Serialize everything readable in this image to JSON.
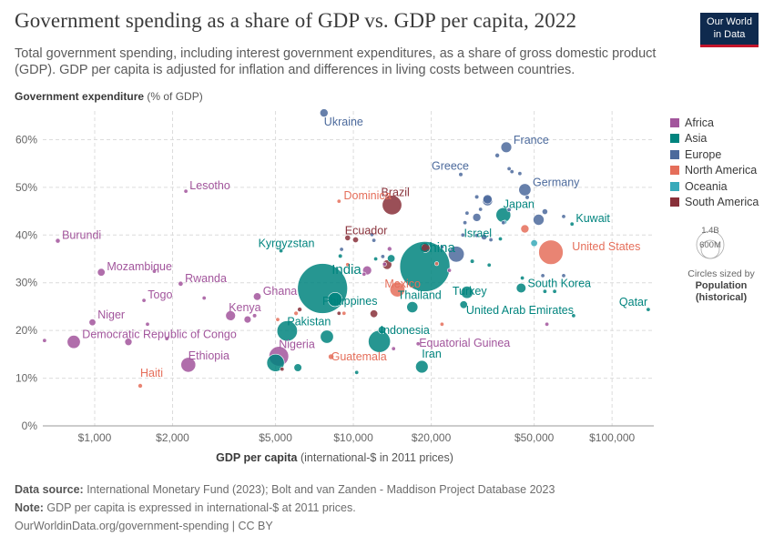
{
  "header": {
    "title": "Government spending as a share of GDP vs. GDP per capita, 2022",
    "subtitle": "Total government spending, including interest government expenditures, as a share of gross domestic product (GDP). GDP per capita is adjusted for inflation and differences in living costs between countries.",
    "logo_line1": "Our World",
    "logo_line2": "in Data"
  },
  "axis_labels": {
    "y_bold": "Government expenditure",
    "y_rest": " (% of GDP)",
    "x_bold": "GDP per capita",
    "x_rest": " (international-$ in 2011 prices)"
  },
  "size_legend": {
    "small": "1.4B",
    "big": "600M",
    "caption": "Circles sized by",
    "measure": "Population",
    "measure_note": "(historical)"
  },
  "footer": {
    "source_label": "Data source:",
    "source_text": " International Monetary Fund (2023); Bolt and van Zanden - Maddison Project Database 2023",
    "note_label": "Note:",
    "note_text": " GDP per capita is expressed in international-$ at 2011 prices.",
    "credit": "OurWorldinData.org/government-spending | CC BY"
  },
  "colors": {
    "Africa": "#a2559c",
    "Asia": "#00847e",
    "Europe": "#4c6a9c",
    "North America": "#e56e5a",
    "Oceania": "#38aaba",
    "South America": "#883039"
  },
  "chart_data": {
    "type": "scatter",
    "title": "Government spending as a share of GDP vs. GDP per capita, 2022",
    "xlabel": "GDP per capita (international-$ in 2011 prices)",
    "ylabel": "Government expenditure (% of GDP)",
    "x_scale": "log",
    "xlim": [
      630,
      145000
    ],
    "ylim": [
      0,
      66
    ],
    "x_ticks": [
      1000,
      2000,
      5000,
      10000,
      20000,
      50000,
      100000
    ],
    "x_tick_labels": [
      "$1,000",
      "$2,000",
      "$5,000",
      "$10,000",
      "$20,000",
      "$50,000",
      "$100,000"
    ],
    "y_ticks": [
      0,
      10,
      20,
      30,
      40,
      50,
      60
    ],
    "y_tick_labels": [
      "0%",
      "10%",
      "20%",
      "30%",
      "40%",
      "50%",
      "60%"
    ],
    "grid": true,
    "legend_position": "right",
    "series": [
      {
        "name": "Africa",
        "points": [
          {
            "label": "Lesotho",
            "x": 2250,
            "y": 49.2,
            "pop": 2.3
          },
          {
            "label": "Burundi",
            "x": 720,
            "y": 38.8,
            "pop": 12.9
          },
          {
            "label": "Mozambique",
            "x": 1060,
            "y": 32.2,
            "pop": 32.9
          },
          {
            "label": "Rwanda",
            "x": 2150,
            "y": 29.8,
            "pop": 13.8
          },
          {
            "label": "Togo",
            "x": 1550,
            "y": 26.3,
            "pop": 8.8
          },
          {
            "label": "Ghana",
            "x": 4250,
            "y": 27.1,
            "pop": 33.5
          },
          {
            "label": "Kenya",
            "x": 3350,
            "y": 23.1,
            "pop": 54
          },
          {
            "label": "Niger",
            "x": 980,
            "y": 21.7,
            "pop": 26.2
          },
          {
            "label": "Democratic Republic of Congo",
            "x": 830,
            "y": 17.6,
            "pop": 99
          },
          {
            "label": "Ethiopia",
            "x": 2300,
            "y": 12.8,
            "pop": 123
          },
          {
            "label": "Nigeria",
            "x": 5150,
            "y": 14.6,
            "pop": 218
          },
          {
            "label": "Equatorial Guinea",
            "x": 17800,
            "y": 17.2,
            "pop": 1.7
          },
          {
            "label": "",
            "x": 640,
            "y": 17.9,
            "pop": 5
          },
          {
            "label": "",
            "x": 1350,
            "y": 17.6,
            "pop": 30
          },
          {
            "label": "",
            "x": 1600,
            "y": 21.3,
            "pop": 8
          },
          {
            "label": "",
            "x": 1700,
            "y": 32.4,
            "pop": 8
          },
          {
            "label": "",
            "x": 2650,
            "y": 26.8,
            "pop": 6
          },
          {
            "label": "",
            "x": 3900,
            "y": 22.3,
            "pop": 29
          },
          {
            "label": "",
            "x": 4150,
            "y": 23.1,
            "pop": 10
          },
          {
            "label": "",
            "x": 1900,
            "y": 18.3,
            "pop": 4
          },
          {
            "label": "",
            "x": 11300,
            "y": 32.6,
            "pop": 46
          },
          {
            "label": "",
            "x": 11000,
            "y": 31.8,
            "pop": 6
          },
          {
            "label": "",
            "x": 13200,
            "y": 33.9,
            "pop": 1.3
          },
          {
            "label": "",
            "x": 13800,
            "y": 37.1,
            "pop": 12
          },
          {
            "label": "",
            "x": 14300,
            "y": 16.2,
            "pop": 2.5
          },
          {
            "label": "",
            "x": 23500,
            "y": 32.6,
            "pop": 1.3
          },
          {
            "label": "",
            "x": 56000,
            "y": 21.3,
            "pop": 0.1
          }
        ]
      },
      {
        "name": "Asia",
        "points": [
          {
            "label": "China",
            "x": 18900,
            "y": 33.4,
            "pop": 1425
          },
          {
            "label": "India",
            "x": 7600,
            "y": 28.8,
            "pop": 1417
          },
          {
            "label": "Pakistan",
            "x": 5550,
            "y": 19.9,
            "pop": 236
          },
          {
            "label": "Indonesia",
            "x": 12600,
            "y": 17.7,
            "pop": 275
          },
          {
            "label": "Philippines",
            "x": 8500,
            "y": 26.5,
            "pop": 116
          },
          {
            "label": "Thailand",
            "x": 16900,
            "y": 24.9,
            "pop": 71
          },
          {
            "label": "Iran",
            "x": 18400,
            "y": 12.4,
            "pop": 89
          },
          {
            "label": "Japan",
            "x": 38000,
            "y": 44.2,
            "pop": 124
          },
          {
            "label": "South Korea",
            "x": 44500,
            "y": 28.9,
            "pop": 52
          },
          {
            "label": "Turkey",
            "x": 27500,
            "y": 28.0,
            "pop": 85
          },
          {
            "label": "Israel",
            "x": 37000,
            "y": 39.2,
            "pop": 9
          },
          {
            "label": "Kyrgyzstan",
            "x": 5250,
            "y": 36.7,
            "pop": 6.8
          },
          {
            "label": "United Arab Emirates",
            "x": 71000,
            "y": 23.1,
            "pop": 9.4
          },
          {
            "label": "Kuwait",
            "x": 70000,
            "y": 42.3,
            "pop": 4.3
          },
          {
            "label": "Qatar",
            "x": 138000,
            "y": 24.4,
            "pop": 2.7
          },
          {
            "label": "",
            "x": 5000,
            "y": 13.2,
            "pop": 173
          },
          {
            "label": "",
            "x": 7900,
            "y": 18.7,
            "pop": 99
          },
          {
            "label": "",
            "x": 6100,
            "y": 12.2,
            "pop": 35
          },
          {
            "label": "",
            "x": 10300,
            "y": 11.2,
            "pop": 5
          },
          {
            "label": "",
            "x": 12900,
            "y": 20.1,
            "pop": 34
          },
          {
            "label": "",
            "x": 26700,
            "y": 25.4,
            "pop": 33
          },
          {
            "label": "",
            "x": 28800,
            "y": 34.5,
            "pop": 10
          },
          {
            "label": "",
            "x": 33500,
            "y": 33.7,
            "pop": 6
          },
          {
            "label": "",
            "x": 55000,
            "y": 28.2,
            "pop": 5
          },
          {
            "label": "",
            "x": 45000,
            "y": 31.0,
            "pop": 1.5
          },
          {
            "label": "",
            "x": 60000,
            "y": 28.2,
            "pop": 5.6
          },
          {
            "label": "",
            "x": 14000,
            "y": 35.1,
            "pop": 34
          },
          {
            "label": "",
            "x": 12200,
            "y": 35.0,
            "pop": 5
          },
          {
            "label": "",
            "x": 8900,
            "y": 35.6,
            "pop": 10
          }
        ]
      },
      {
        "name": "Europe",
        "points": [
          {
            "label": "Ukraine",
            "x": 7700,
            "y": 65.6,
            "pop": 39
          },
          {
            "label": "France",
            "x": 39000,
            "y": 58.4,
            "pop": 66
          },
          {
            "label": "Greece",
            "x": 26000,
            "y": 52.7,
            "pop": 10
          },
          {
            "label": "Germany",
            "x": 46000,
            "y": 49.5,
            "pop": 84
          },
          {
            "label": "",
            "x": 36000,
            "y": 56.7,
            "pop": 11.7
          },
          {
            "label": "",
            "x": 41000,
            "y": 53.3,
            "pop": 9
          },
          {
            "label": "",
            "x": 44000,
            "y": 52.9,
            "pop": 5.9
          },
          {
            "label": "",
            "x": 40000,
            "y": 53.9,
            "pop": 5.5
          },
          {
            "label": "",
            "x": 33000,
            "y": 47.2,
            "pop": 59
          },
          {
            "label": "",
            "x": 33000,
            "y": 47.5,
            "pop": 47
          },
          {
            "label": "",
            "x": 47000,
            "y": 47.9,
            "pop": 10.4
          },
          {
            "label": "",
            "x": 30000,
            "y": 43.7,
            "pop": 38
          },
          {
            "label": "",
            "x": 30000,
            "y": 48.0,
            "pop": 10.3
          },
          {
            "label": "",
            "x": 27000,
            "y": 42.6,
            "pop": 2.1
          },
          {
            "label": "",
            "x": 27500,
            "y": 44.6,
            "pop": 3.9
          },
          {
            "label": "",
            "x": 40000,
            "y": 45.3,
            "pop": 5.5
          },
          {
            "label": "",
            "x": 55000,
            "y": 44.9,
            "pop": 17.6
          },
          {
            "label": "",
            "x": 65000,
            "y": 43.9,
            "pop": 8.7
          },
          {
            "label": "",
            "x": 52000,
            "y": 43.2,
            "pop": 67
          },
          {
            "label": "",
            "x": 30000,
            "y": 39.9,
            "pop": 5.4
          },
          {
            "label": "",
            "x": 32000,
            "y": 39.6,
            "pop": 19
          },
          {
            "label": "",
            "x": 34000,
            "y": 39.0,
            "pop": 1.9
          },
          {
            "label": "",
            "x": 26500,
            "y": 40.0,
            "pop": 1.3
          },
          {
            "label": "",
            "x": 38000,
            "y": 42.6,
            "pop": 2.8
          },
          {
            "label": "",
            "x": 25000,
            "y": 36.0,
            "pop": 144
          },
          {
            "label": "",
            "x": 22000,
            "y": 37.5,
            "pop": 3.8
          },
          {
            "label": "",
            "x": 12000,
            "y": 38.9,
            "pop": 9.2
          },
          {
            "label": "",
            "x": 9000,
            "y": 37.0,
            "pop": 2.8
          },
          {
            "label": "",
            "x": 11800,
            "y": 40.1,
            "pop": 2.1
          },
          {
            "label": "",
            "x": 13000,
            "y": 35.5,
            "pop": 6.8
          },
          {
            "label": "",
            "x": 31000,
            "y": 45.4,
            "pop": 1.3
          },
          {
            "label": "",
            "x": 54000,
            "y": 31.5,
            "pop": 8.7
          },
          {
            "label": "",
            "x": 65000,
            "y": 31.5,
            "pop": 0.6
          }
        ]
      },
      {
        "name": "North America",
        "points": [
          {
            "label": "United States",
            "x": 58000,
            "y": 36.4,
            "pop": 338
          },
          {
            "label": "Mexico",
            "x": 14800,
            "y": 28.6,
            "pop": 127
          },
          {
            "label": "Dominica",
            "x": 8800,
            "y": 47.1,
            "pop": 0.07
          },
          {
            "label": "Guatemala",
            "x": 8200,
            "y": 14.5,
            "pop": 18
          },
          {
            "label": "Haiti",
            "x": 1500,
            "y": 8.4,
            "pop": 11.6
          },
          {
            "label": "",
            "x": 46000,
            "y": 41.3,
            "pop": 38
          },
          {
            "label": "",
            "x": 22000,
            "y": 21.3,
            "pop": 5
          },
          {
            "label": "",
            "x": 5100,
            "y": 22.3,
            "pop": 6.3
          },
          {
            "label": "",
            "x": 6000,
            "y": 23.6,
            "pop": 10.5
          },
          {
            "label": "",
            "x": 9200,
            "y": 23.6,
            "pop": 2.8
          },
          {
            "label": "",
            "x": 21000,
            "y": 34.0,
            "pop": 4.4
          },
          {
            "label": "",
            "x": 9500,
            "y": 33.8,
            "pop": 0.4
          }
        ]
      },
      {
        "name": "Oceania",
        "points": [
          {
            "label": "",
            "x": 50000,
            "y": 38.3,
            "pop": 26
          },
          {
            "label": "",
            "x": 38500,
            "y": 42.7,
            "pop": 5.2
          }
        ]
      },
      {
        "name": "South America",
        "points": [
          {
            "label": "Brazil",
            "x": 14100,
            "y": 46.3,
            "pop": 215
          },
          {
            "label": "Ecuador",
            "x": 9500,
            "y": 39.4,
            "pop": 18
          },
          {
            "label": "",
            "x": 19000,
            "y": 37.3,
            "pop": 46
          },
          {
            "label": "",
            "x": 13500,
            "y": 33.8,
            "pop": 51
          },
          {
            "label": "",
            "x": 12000,
            "y": 23.5,
            "pop": 34
          },
          {
            "label": "",
            "x": 5300,
            "y": 11.9,
            "pop": 6.8
          },
          {
            "label": "",
            "x": 6200,
            "y": 24.4,
            "pop": 12.2
          },
          {
            "label": "",
            "x": 8800,
            "y": 23.6,
            "pop": 5
          },
          {
            "label": "",
            "x": 10200,
            "y": 39.0,
            "pop": 19
          }
        ]
      }
    ]
  }
}
